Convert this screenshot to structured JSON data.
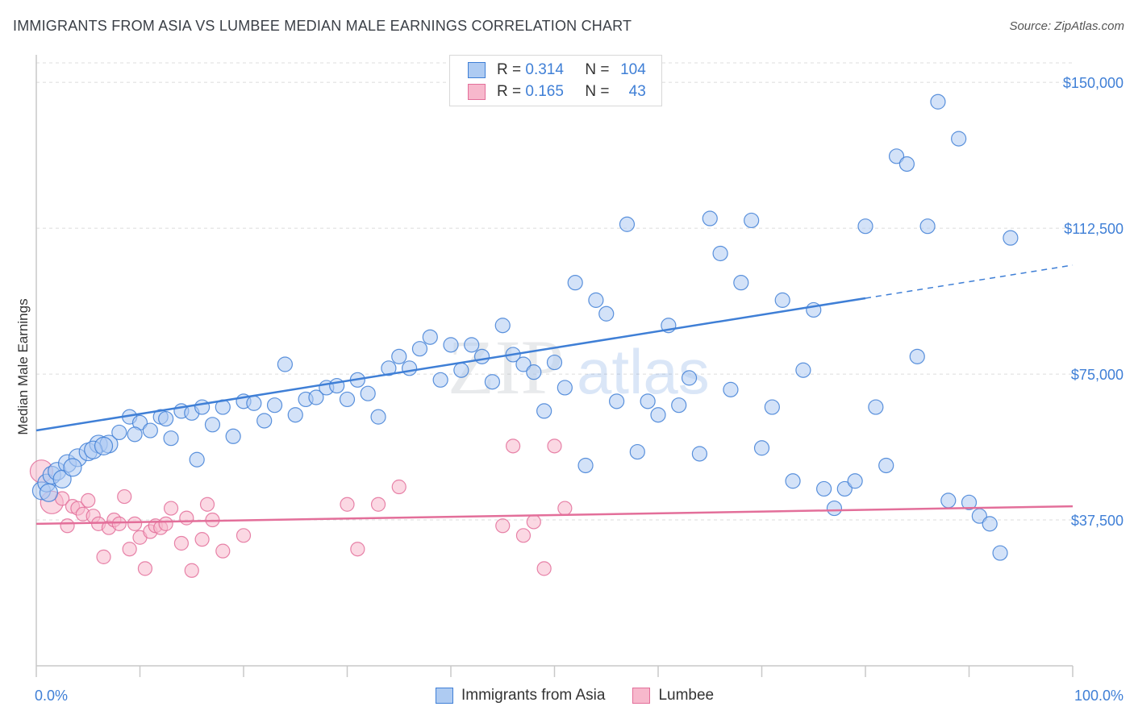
{
  "title": "IMMIGRANTS FROM ASIA VS LUMBEE MEDIAN MALE EARNINGS CORRELATION CHART",
  "source": "Source: ZipAtlas.com",
  "watermark": {
    "zip": "ZIP",
    "atlas": "atlas"
  },
  "colors": {
    "blue": "#3f7fd6",
    "blue_fill": "#aecbf2",
    "pink": "#e36f9a",
    "pink_fill": "#f7b8cc"
  },
  "legend": {
    "r_label": "R =",
    "n_label": "N =",
    "rows": [
      {
        "r": "0.314",
        "n": "104",
        "color": "blue"
      },
      {
        "r": "0.165",
        "n": "43",
        "color": "pink"
      }
    ]
  },
  "chart_data": {
    "type": "scatter",
    "title": "IMMIGRANTS FROM ASIA VS LUMBEE MEDIAN MALE EARNINGS CORRELATION CHART",
    "xlabel": "",
    "ylabel": "Median Male Earnings",
    "xlim": [
      0,
      100
    ],
    "ylim": [
      0,
      155000
    ],
    "x_tick_labels": [
      "0.0%",
      "100.0%"
    ],
    "y_ticks": [
      37500,
      75000,
      112500,
      150000
    ],
    "y_tick_labels": [
      "$37,500",
      "$75,000",
      "$112,500",
      "$150,000"
    ],
    "grid": true,
    "legend_position": "top-center",
    "series": [
      {
        "name": "Immigrants from Asia",
        "color": "blue",
        "trend": {
          "x0": 0,
          "y0": 60500,
          "x1": 80,
          "y1": 94500,
          "dash_to_x": 100,
          "dash_to_y": 103000
        },
        "points": [
          [
            0.5,
            45000
          ],
          [
            1,
            47000
          ],
          [
            1.5,
            49000
          ],
          [
            2,
            50000
          ],
          [
            3,
            52000
          ],
          [
            4,
            53500
          ],
          [
            5,
            55000
          ],
          [
            6,
            57000
          ],
          [
            7,
            57000
          ],
          [
            5.5,
            55500
          ],
          [
            8,
            60000
          ],
          [
            9,
            64000
          ],
          [
            10,
            62500
          ],
          [
            11,
            60500
          ],
          [
            12,
            64000
          ],
          [
            12.5,
            63500
          ],
          [
            13,
            58500
          ],
          [
            14,
            65500
          ],
          [
            15,
            65000
          ],
          [
            15.5,
            53000
          ],
          [
            16,
            66500
          ],
          [
            17,
            62000
          ],
          [
            18,
            66500
          ],
          [
            19,
            59000
          ],
          [
            20,
            68000
          ],
          [
            21,
            67500
          ],
          [
            22,
            63000
          ],
          [
            23,
            67000
          ],
          [
            24,
            77500
          ],
          [
            25,
            64500
          ],
          [
            26,
            68500
          ],
          [
            27,
            69000
          ],
          [
            28,
            71500
          ],
          [
            29,
            72000
          ],
          [
            30,
            68500
          ],
          [
            31,
            73500
          ],
          [
            32,
            70000
          ],
          [
            33,
            64000
          ],
          [
            34,
            76500
          ],
          [
            35,
            79500
          ],
          [
            36,
            76500
          ],
          [
            37,
            81500
          ],
          [
            38,
            84500
          ],
          [
            39,
            73500
          ],
          [
            40,
            82500
          ],
          [
            41,
            76000
          ],
          [
            42,
            82500
          ],
          [
            43,
            79500
          ],
          [
            44,
            73000
          ],
          [
            45,
            87500
          ],
          [
            46,
            80000
          ],
          [
            47,
            77500
          ],
          [
            48,
            75500
          ],
          [
            49,
            65500
          ],
          [
            50,
            78000
          ],
          [
            51,
            71500
          ],
          [
            52,
            98500
          ],
          [
            53,
            51500
          ],
          [
            54,
            94000
          ],
          [
            55,
            90500
          ],
          [
            56,
            68000
          ],
          [
            57,
            113500
          ],
          [
            58,
            55000
          ],
          [
            59,
            68000
          ],
          [
            60,
            64500
          ],
          [
            61,
            87500
          ],
          [
            62,
            67000
          ],
          [
            63,
            74000
          ],
          [
            64,
            54500
          ],
          [
            65,
            115000
          ],
          [
            66,
            106000
          ],
          [
            67,
            71000
          ],
          [
            68,
            98500
          ],
          [
            69,
            114500
          ],
          [
            70,
            56000
          ],
          [
            71,
            66500
          ],
          [
            72,
            94000
          ],
          [
            73,
            47500
          ],
          [
            74,
            76000
          ],
          [
            75,
            91500
          ],
          [
            76,
            45500
          ],
          [
            77,
            40500
          ],
          [
            78,
            45500
          ],
          [
            79,
            47500
          ],
          [
            80,
            113000
          ],
          [
            81,
            66500
          ],
          [
            82,
            51500
          ],
          [
            83,
            131000
          ],
          [
            84,
            129000
          ],
          [
            85,
            79500
          ],
          [
            86,
            113000
          ],
          [
            87,
            145000
          ],
          [
            88,
            42500
          ],
          [
            89,
            135500
          ],
          [
            90,
            42000
          ],
          [
            91,
            38500
          ],
          [
            92,
            36500
          ],
          [
            93,
            29000
          ],
          [
            94,
            110000
          ],
          [
            1.2,
            44500
          ],
          [
            2.5,
            48000
          ],
          [
            3.5,
            51000
          ],
          [
            6.5,
            56500
          ],
          [
            9.5,
            59500
          ]
        ]
      },
      {
        "name": "Lumbee",
        "color": "pink",
        "trend": {
          "x0": 0,
          "y0": 36500,
          "x1": 100,
          "y1": 41000
        },
        "points": [
          [
            0.5,
            50000
          ],
          [
            1.5,
            42000
          ],
          [
            2.5,
            43000
          ],
          [
            3,
            36000
          ],
          [
            3.5,
            41000
          ],
          [
            4,
            40500
          ],
          [
            4.5,
            39000
          ],
          [
            5,
            42500
          ],
          [
            5.5,
            38500
          ],
          [
            6,
            36500
          ],
          [
            6.5,
            28000
          ],
          [
            7,
            35500
          ],
          [
            7.5,
            37500
          ],
          [
            8,
            36500
          ],
          [
            8.5,
            43500
          ],
          [
            9,
            30000
          ],
          [
            9.5,
            36500
          ],
          [
            10,
            33000
          ],
          [
            10.5,
            25000
          ],
          [
            11,
            34500
          ],
          [
            11.5,
            36000
          ],
          [
            12,
            35500
          ],
          [
            12.5,
            36500
          ],
          [
            13,
            40500
          ],
          [
            14,
            31500
          ],
          [
            14.5,
            38000
          ],
          [
            15,
            24500
          ],
          [
            16,
            32500
          ],
          [
            16.5,
            41500
          ],
          [
            17,
            37500
          ],
          [
            18,
            29500
          ],
          [
            20,
            33500
          ],
          [
            30,
            41500
          ],
          [
            31,
            30000
          ],
          [
            33,
            41500
          ],
          [
            35,
            46000
          ],
          [
            45,
            36000
          ],
          [
            46,
            56500
          ],
          [
            47,
            33500
          ],
          [
            48,
            37000
          ],
          [
            49,
            25000
          ],
          [
            50,
            56500
          ],
          [
            51,
            40500
          ]
        ]
      }
    ]
  },
  "bottom_legend": [
    {
      "label": "Immigrants from Asia",
      "color": "blue"
    },
    {
      "label": "Lumbee",
      "color": "pink"
    }
  ]
}
